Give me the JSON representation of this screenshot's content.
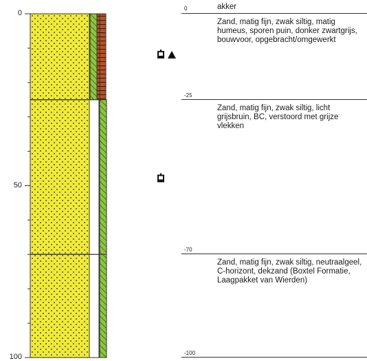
{
  "axis": {
    "ticks": [
      {
        "value": 0,
        "label": "0"
      },
      {
        "value": 50,
        "label": "50"
      },
      {
        "value": 100,
        "label": "100"
      }
    ]
  },
  "colors": {
    "sand": "#f0ea3a",
    "dot": "#222222",
    "green_hatch": "#8cc63f",
    "brick": "#b0522d",
    "outline": "#333333"
  },
  "layers": [
    {
      "top": 0,
      "bottom": 25,
      "top_label": "0",
      "name": "akker",
      "description": "Zand, matig fijn, zwak siltig, matig humeus, sporen puin, donker zwartgrijs, bouwvoor, opgebracht/omgewerkt"
    },
    {
      "top": 25,
      "bottom": 70,
      "top_label": "-25",
      "name": "",
      "description": "Zand, matig fijn, zwak siltig, licht grijsbruin, BC, verstoord met grijze vlekken"
    },
    {
      "top": 70,
      "bottom": 100,
      "top_label": "-70",
      "name": "",
      "description": "Zand, matig fijn, zwak siltig, neutraalgeel, C-horizont, dekzand (Boxtel Formatie, Laagpakket van Wierden)"
    }
  ],
  "bottom_label": "-100",
  "symbols": [
    {
      "depth": 12,
      "icon": "sample-bag-icon"
    },
    {
      "depth": 12,
      "icon": "triangle-icon"
    },
    {
      "depth": 48,
      "icon": "sample-bag-icon"
    }
  ]
}
